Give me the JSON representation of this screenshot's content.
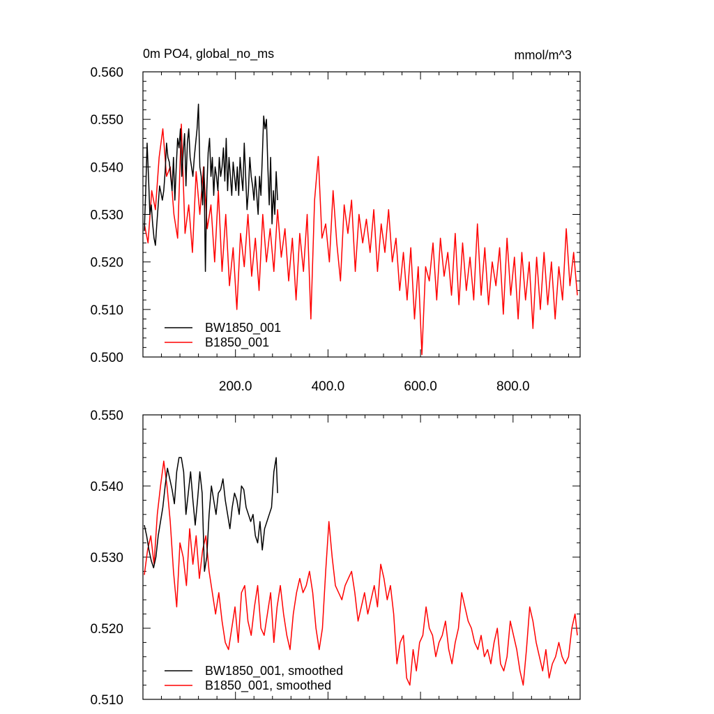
{
  "chart_data": [
    {
      "type": "line",
      "title": "0m PO4, global_no_ms",
      "units": "mmol/m^3",
      "xlim": [
        0,
        945
      ],
      "ylim": [
        0.5,
        0.56
      ],
      "x_ticks": [
        200,
        400,
        600,
        800
      ],
      "x_tick_labels": [
        "200.0",
        "400.0",
        "600.0",
        "800.0"
      ],
      "y_ticks": [
        0.5,
        0.51,
        0.52,
        0.53,
        0.54,
        0.55,
        0.56
      ],
      "y_tick_labels": [
        "0.500",
        "0.510",
        "0.520",
        "0.530",
        "0.540",
        "0.550",
        "0.560"
      ],
      "grid": false,
      "legend_position": "bottom-left",
      "series": [
        {
          "name": "BW1850_001",
          "color": "#000000",
          "x": [
            3,
            6,
            9,
            12,
            15,
            18,
            21,
            24,
            27,
            30,
            33,
            36,
            39,
            42,
            45,
            48,
            51,
            54,
            57,
            60,
            63,
            66,
            69,
            72,
            75,
            78,
            81,
            84,
            87,
            90,
            93,
            96,
            99,
            102,
            105,
            108,
            111,
            114,
            117,
            120,
            123,
            126,
            129,
            132,
            135,
            138,
            141,
            144,
            147,
            150,
            153,
            156,
            159,
            162,
            165,
            168,
            171,
            174,
            177,
            180,
            183,
            186,
            189,
            192,
            195,
            198,
            201,
            204,
            207,
            210,
            213,
            216,
            219,
            222,
            225,
            228,
            231,
            234,
            237,
            240,
            243,
            246,
            249,
            252,
            255,
            258,
            261,
            264,
            267,
            270,
            273,
            276,
            279,
            282,
            285,
            288,
            291
          ],
          "values": [
            0.5265,
            0.535,
            0.545,
            0.538,
            0.53,
            0.532,
            0.528,
            0.525,
            0.5235,
            0.528,
            0.532,
            0.536,
            0.5345,
            0.533,
            0.535,
            0.539,
            0.545,
            0.542,
            0.541,
            0.538,
            0.535,
            0.542,
            0.533,
            0.54,
            0.546,
            0.544,
            0.548,
            0.538,
            0.543,
            0.547,
            0.536,
            0.545,
            0.548,
            0.542,
            0.54,
            0.538,
            0.542,
            0.545,
            0.548,
            0.5532,
            0.54,
            0.538,
            0.532,
            0.54,
            0.518,
            0.535,
            0.543,
            0.546,
            0.538,
            0.542,
            0.534,
            0.54,
            0.538,
            0.535,
            0.542,
            0.538,
            0.54,
            0.544,
            0.537,
            0.546,
            0.535,
            0.542,
            0.538,
            0.534,
            0.541,
            0.538,
            0.535,
            0.54,
            0.534,
            0.542,
            0.538,
            0.535,
            0.545,
            0.538,
            0.531,
            0.535,
            0.542,
            0.538,
            0.536,
            0.533,
            0.538,
            0.534,
            0.53,
            0.538,
            0.534,
            0.542,
            0.5507,
            0.548,
            0.55,
            0.54,
            0.532,
            0.542,
            0.528,
            0.535,
            0.53,
            0.539,
            0.533
          ]
        },
        {
          "name": "B1850_001",
          "color": "#ff0000",
          "x": [
            3,
            11,
            19,
            27,
            35,
            43,
            51,
            59,
            67,
            75,
            83,
            91,
            99,
            107,
            115,
            123,
            131,
            139,
            147,
            155,
            163,
            171,
            179,
            187,
            195,
            203,
            211,
            219,
            227,
            235,
            243,
            251,
            259,
            267,
            275,
            283,
            291,
            299,
            307,
            315,
            323,
            331,
            339,
            347,
            355,
            363,
            371,
            379,
            387,
            395,
            403,
            411,
            419,
            427,
            435,
            443,
            451,
            459,
            467,
            475,
            483,
            491,
            499,
            507,
            515,
            523,
            531,
            539,
            547,
            555,
            563,
            571,
            579,
            587,
            595,
            603,
            611,
            619,
            627,
            635,
            643,
            651,
            659,
            667,
            675,
            683,
            691,
            699,
            707,
            715,
            723,
            731,
            739,
            747,
            755,
            763,
            771,
            779,
            787,
            795,
            803,
            811,
            819,
            827,
            835,
            843,
            851,
            859,
            867,
            875,
            883,
            891,
            899,
            907,
            915,
            923,
            931,
            939
          ],
          "values": [
            0.528,
            0.524,
            0.535,
            0.531,
            0.542,
            0.548,
            0.538,
            0.54,
            0.53,
            0.525,
            0.549,
            0.526,
            0.532,
            0.522,
            0.539,
            0.53,
            0.54,
            0.527,
            0.532,
            0.52,
            0.535,
            0.518,
            0.53,
            0.515,
            0.523,
            0.51,
            0.526,
            0.519,
            0.53,
            0.517,
            0.525,
            0.514,
            0.53,
            0.52,
            0.527,
            0.518,
            0.531,
            0.521,
            0.527,
            0.516,
            0.525,
            0.512,
            0.526,
            0.518,
            0.53,
            0.508,
            0.533,
            0.5422,
            0.525,
            0.528,
            0.52,
            0.535,
            0.524,
            0.516,
            0.532,
            0.526,
            0.533,
            0.518,
            0.53,
            0.524,
            0.529,
            0.522,
            0.531,
            0.518,
            0.528,
            0.522,
            0.531,
            0.52,
            0.525,
            0.514,
            0.522,
            0.512,
            0.523,
            0.508,
            0.519,
            0.5005,
            0.519,
            0.516,
            0.524,
            0.512,
            0.525,
            0.517,
            0.522,
            0.513,
            0.526,
            0.511,
            0.524,
            0.514,
            0.521,
            0.512,
            0.528,
            0.513,
            0.523,
            0.511,
            0.52,
            0.515,
            0.523,
            0.509,
            0.525,
            0.513,
            0.521,
            0.508,
            0.522,
            0.512,
            0.52,
            0.506,
            0.521,
            0.51,
            0.522,
            0.511,
            0.52,
            0.508,
            0.519,
            0.512,
            0.527,
            0.515,
            0.522,
            0.513
          ]
        }
      ]
    },
    {
      "type": "line",
      "title": "",
      "xlim": [
        0,
        945
      ],
      "ylim": [
        0.51,
        0.55
      ],
      "x_ticks": [
        200,
        400,
        600,
        800
      ],
      "x_tick_labels": [],
      "y_ticks": [
        0.51,
        0.52,
        0.53,
        0.54,
        0.55
      ],
      "y_tick_labels": [
        "0.510",
        "0.520",
        "0.530",
        "0.540",
        "0.550"
      ],
      "grid": false,
      "legend_position": "bottom-left",
      "series": [
        {
          "name": "BW1850_001, smoothed",
          "color": "#000000",
          "x": [
            3,
            8,
            13,
            18,
            23,
            28,
            33,
            38,
            43,
            48,
            53,
            58,
            63,
            68,
            73,
            78,
            83,
            88,
            93,
            98,
            103,
            108,
            113,
            118,
            123,
            128,
            133,
            138,
            143,
            148,
            153,
            158,
            163,
            168,
            173,
            178,
            183,
            188,
            193,
            198,
            203,
            208,
            213,
            218,
            223,
            228,
            233,
            238,
            243,
            248,
            253,
            258,
            263,
            268,
            273,
            278,
            283,
            288,
            291
          ],
          "values": [
            0.5345,
            0.533,
            0.531,
            0.5295,
            0.5285,
            0.53,
            0.533,
            0.535,
            0.537,
            0.54,
            0.5425,
            0.541,
            0.5395,
            0.5375,
            0.542,
            0.544,
            0.544,
            0.542,
            0.536,
            0.539,
            0.542,
            0.538,
            0.5345,
            0.538,
            0.542,
            0.539,
            0.528,
            0.53,
            0.536,
            0.54,
            0.538,
            0.536,
            0.539,
            0.5395,
            0.541,
            0.538,
            0.536,
            0.534,
            0.537,
            0.539,
            0.538,
            0.536,
            0.54,
            0.5395,
            0.537,
            0.536,
            0.535,
            0.536,
            0.533,
            0.532,
            0.535,
            0.531,
            0.534,
            0.535,
            0.536,
            0.537,
            0.542,
            0.544,
            0.539
          ]
        },
        {
          "name": "B1850_001, smoothed",
          "color": "#ff0000",
          "x": [
            3,
            10,
            17,
            24,
            31,
            38,
            45,
            52,
            59,
            66,
            73,
            80,
            87,
            94,
            101,
            108,
            115,
            122,
            129,
            136,
            143,
            150,
            157,
            164,
            171,
            178,
            185,
            192,
            199,
            206,
            213,
            220,
            227,
            234,
            241,
            248,
            255,
            262,
            269,
            276,
            283,
            290,
            297,
            304,
            311,
            318,
            325,
            332,
            339,
            346,
            353,
            360,
            367,
            374,
            381,
            388,
            395,
            402,
            409,
            416,
            423,
            430,
            437,
            444,
            451,
            458,
            465,
            472,
            479,
            486,
            493,
            500,
            507,
            514,
            521,
            528,
            535,
            542,
            549,
            556,
            563,
            570,
            577,
            584,
            591,
            598,
            605,
            612,
            619,
            626,
            633,
            640,
            647,
            654,
            661,
            668,
            675,
            682,
            689,
            696,
            703,
            710,
            717,
            724,
            731,
            738,
            745,
            752,
            759,
            766,
            773,
            780,
            787,
            794,
            801,
            808,
            815,
            822,
            829,
            836,
            843,
            850,
            857,
            864,
            871,
            878,
            885,
            892,
            899,
            906,
            913,
            920,
            927,
            934,
            939
          ],
          "values": [
            0.5275,
            0.531,
            0.533,
            0.529,
            0.536,
            0.54,
            0.5435,
            0.54,
            0.535,
            0.528,
            0.523,
            0.532,
            0.53,
            0.526,
            0.534,
            0.529,
            0.533,
            0.527,
            0.531,
            0.533,
            0.528,
            0.525,
            0.522,
            0.525,
            0.521,
            0.518,
            0.517,
            0.52,
            0.523,
            0.518,
            0.525,
            0.526,
            0.521,
            0.519,
            0.523,
            0.526,
            0.52,
            0.519,
            0.522,
            0.525,
            0.518,
            0.523,
            0.526,
            0.522,
            0.519,
            0.517,
            0.522,
            0.525,
            0.527,
            0.525,
            0.526,
            0.528,
            0.525,
            0.52,
            0.517,
            0.52,
            0.528,
            0.535,
            0.53,
            0.526,
            0.525,
            0.524,
            0.526,
            0.527,
            0.528,
            0.525,
            0.521,
            0.523,
            0.525,
            0.522,
            0.524,
            0.526,
            0.523,
            0.529,
            0.527,
            0.524,
            0.526,
            0.522,
            0.515,
            0.518,
            0.519,
            0.513,
            0.512,
            0.517,
            0.514,
            0.518,
            0.519,
            0.523,
            0.52,
            0.519,
            0.516,
            0.518,
            0.519,
            0.521,
            0.517,
            0.515,
            0.518,
            0.52,
            0.525,
            0.523,
            0.521,
            0.52,
            0.518,
            0.517,
            0.519,
            0.516,
            0.517,
            0.515,
            0.518,
            0.52,
            0.515,
            0.514,
            0.516,
            0.521,
            0.519,
            0.517,
            0.514,
            0.512,
            0.517,
            0.523,
            0.521,
            0.518,
            0.516,
            0.514,
            0.517,
            0.513,
            0.515,
            0.516,
            0.518,
            0.516,
            0.515,
            0.516,
            0.52,
            0.522,
            0.519
          ]
        }
      ]
    }
  ]
}
